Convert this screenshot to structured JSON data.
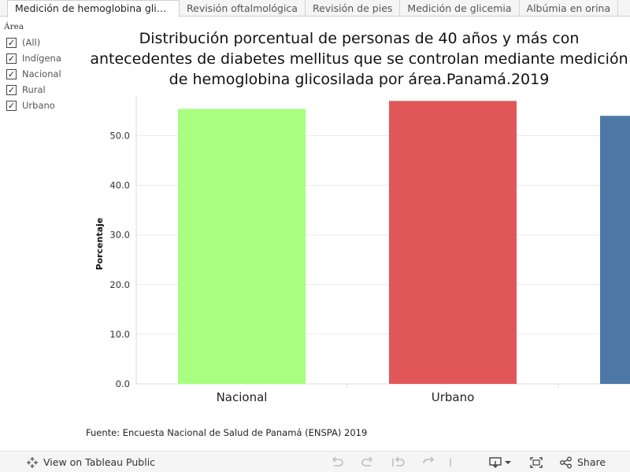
{
  "tabs": [
    {
      "label": "Medición de hemoglobina glico..."
    },
    {
      "label": "Revisión oftalmológica"
    },
    {
      "label": "Revisión de pies"
    },
    {
      "label": "Medición de glicemia"
    },
    {
      "label": "Albúmia en orina"
    }
  ],
  "filter": {
    "title": "Área",
    "items": [
      {
        "label": "(All)",
        "checked": true
      },
      {
        "label": "Indígena",
        "checked": true
      },
      {
        "label": "Nacional",
        "checked": true
      },
      {
        "label": "Rural",
        "checked": true
      },
      {
        "label": "Urbano",
        "checked": true
      }
    ]
  },
  "chart_title": "Distribución porcentual de personas de 40 años y más con antecedentes de diabetes mellitus que se controlan mediante medición de hemoglobina glicosilada por área.Panamá.2019",
  "chart_data": {
    "type": "bar",
    "title": "Distribución porcentual de personas de 40 años y más con antecedentes de diabetes mellitus que se controlan mediante medición de hemoglobina glicosilada por área.Panamá.2019",
    "categories": [
      "Nacional",
      "Urbano",
      ""
    ],
    "values": [
      55.4,
      57.0,
      54.0
    ],
    "colors": [
      "#a9ff7f",
      "#e15759",
      "#4e79a7"
    ],
    "ylabel": "Porcentaje",
    "xlabel": "",
    "yticks": [
      "0.0",
      "10.0",
      "20.0",
      "30.0",
      "40.0",
      "50.0"
    ],
    "ylim": [
      0,
      58
    ],
    "grid": true
  },
  "source": "Fuente: Encuesta Nacional de Salud de Panamá (ENSPA) 2019",
  "toolbar": {
    "view_label": "View on Tableau Public",
    "share_label": "Share"
  }
}
